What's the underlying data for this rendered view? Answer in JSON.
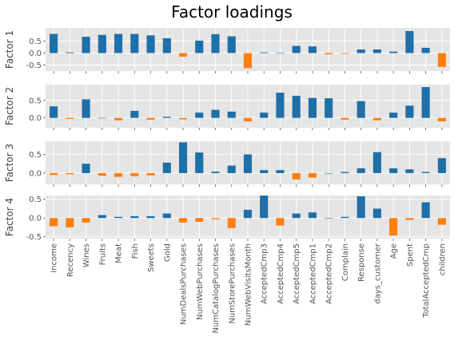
{
  "chart_data": {
    "type": "bar",
    "title": "Factor loadings",
    "categories": [
      "Income",
      "Recency",
      "Wines",
      "Fruits",
      "Meat",
      "Fish",
      "Sweets",
      "Gold",
      "NumDealsPurchases",
      "NumWebPurchases",
      "NumCatalogPurchases",
      "NumStorePurchases",
      "NumWebVisitsMonth",
      "AcceptedCmp3",
      "AcceptedCmp4",
      "AcceptedCmp5",
      "AcceptedCmp1",
      "AcceptedCmp2",
      "Complain",
      "Response",
      "days_customer",
      "Age",
      "Spent",
      "TotalAcceptedCmp",
      "children"
    ],
    "colors": {
      "positive": "#1f6fa8",
      "negative": "#ff7f0e",
      "panel_bg": "#e5e5e5",
      "grid": "#ffffff"
    },
    "grid": true,
    "series": [
      {
        "name": "Factor 1",
        "ylabel": "Factor 1",
        "ylim": [
          -0.75,
          1.05
        ],
        "yticks": [
          -0.5,
          0.0,
          0.5
        ],
        "values": [
          0.8,
          0.03,
          0.68,
          0.76,
          0.8,
          0.8,
          0.74,
          0.62,
          -0.15,
          0.52,
          0.79,
          0.7,
          -0.63,
          0.03,
          0.0,
          0.3,
          0.28,
          -0.05,
          -0.03,
          0.15,
          0.15,
          0.06,
          0.92,
          0.22,
          -0.58
        ]
      },
      {
        "name": "Factor 2",
        "ylabel": "Factor 2",
        "ylim": [
          -0.28,
          0.95
        ],
        "yticks": [
          0.0,
          0.5
        ],
        "values": [
          0.33,
          -0.03,
          0.53,
          0.0,
          -0.07,
          0.2,
          -0.05,
          0.03,
          -0.04,
          0.15,
          0.23,
          0.18,
          -0.1,
          0.15,
          0.72,
          0.63,
          0.57,
          0.56,
          -0.05,
          0.48,
          -0.07,
          0.15,
          0.35,
          0.88,
          -0.1
        ]
      },
      {
        "name": "Factor 3",
        "ylabel": "Factor 3",
        "ylim": [
          -0.3,
          0.85
        ],
        "yticks": [
          0.0,
          0.5
        ],
        "values": [
          -0.05,
          -0.03,
          0.25,
          -0.07,
          -0.1,
          -0.08,
          -0.06,
          0.28,
          0.82,
          0.55,
          0.04,
          0.2,
          0.5,
          0.08,
          0.08,
          -0.17,
          -0.12,
          0.0,
          0.03,
          0.13,
          0.56,
          0.13,
          0.1,
          0.03,
          0.4
        ]
      },
      {
        "name": "Factor 4",
        "ylabel": "Factor 4",
        "ylim": [
          -0.55,
          0.6
        ],
        "yticks": [
          -0.5,
          0.0,
          0.5
        ],
        "values": [
          -0.22,
          -0.25,
          -0.12,
          0.08,
          0.03,
          0.05,
          0.05,
          0.12,
          -0.12,
          -0.1,
          -0.03,
          -0.27,
          0.22,
          0.6,
          -0.2,
          0.12,
          0.15,
          0.0,
          0.03,
          0.58,
          0.25,
          -0.47,
          -0.05,
          0.42,
          -0.18
        ]
      }
    ]
  }
}
